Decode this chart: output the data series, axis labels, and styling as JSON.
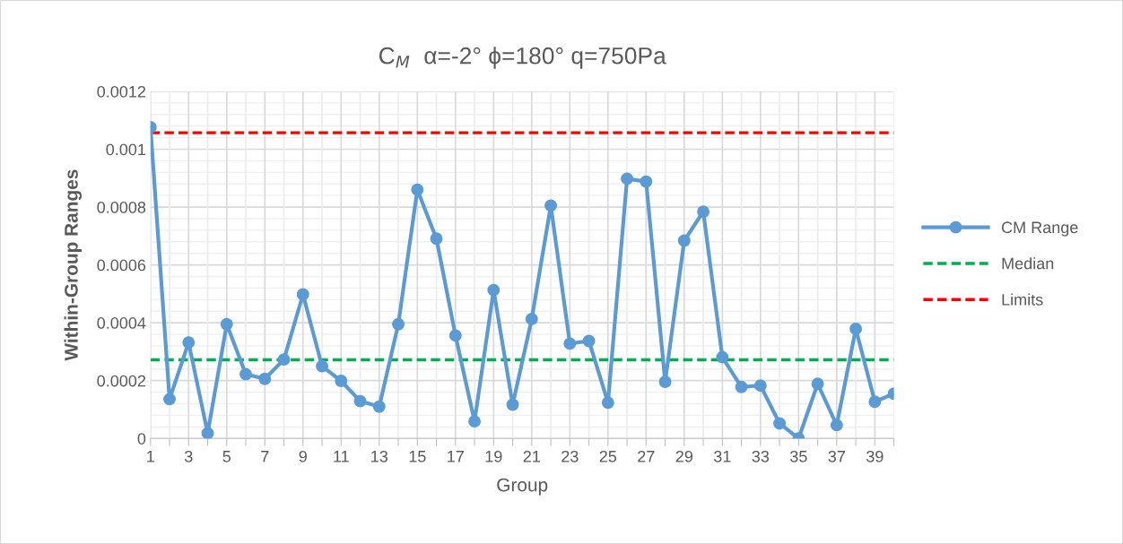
{
  "chart_data": {
    "type": "line",
    "title": "C$_{M}$  α=-2° ϕ=180° q=750Pa",
    "xlabel": "Group",
    "ylabel": "Within-Group Ranges",
    "categories": [
      "1",
      null,
      "3",
      null,
      "5",
      null,
      "7",
      null,
      "9",
      null,
      "11",
      null,
      "13",
      null,
      "15",
      null,
      "17",
      null,
      "19",
      null,
      "21",
      null,
      "23",
      null,
      "25",
      null,
      "27",
      null,
      "29",
      null,
      "31",
      null,
      "33",
      null,
      "35",
      null,
      "37",
      null,
      "39",
      null
    ],
    "series": [
      {
        "name": "CM Range",
        "color": "#5b9bd5",
        "marker": "circle",
        "line_style": "solid",
        "values": [
          0.001076,
          0.000136,
          0.000332,
          1.8e-05,
          0.000395,
          0.000222,
          0.000206,
          0.000273,
          0.000498,
          0.00025,
          0.000199,
          0.000129,
          0.00011,
          0.000395,
          0.00086,
          0.000691,
          0.000356,
          5.9e-05,
          0.000513,
          0.000117,
          0.000413,
          0.000805,
          0.000328,
          0.000337,
          0.000124,
          0.000898,
          0.000888,
          0.000196,
          0.000684,
          0.000784,
          0.000281,
          0.000178,
          0.000183,
          5.2e-05,
          0,
          0.000189,
          4.6e-05,
          0.000379,
          0.000127,
          0.000155
        ]
      },
      {
        "name": "Median",
        "color": "#00b050",
        "marker": "none",
        "line_style": "dashed",
        "values": [
          0.000272,
          0.000272,
          0.000272,
          0.000272,
          0.000272,
          0.000272,
          0.000272,
          0.000272,
          0.000272,
          0.000272,
          0.000272,
          0.000272,
          0.000272,
          0.000272,
          0.000272,
          0.000272,
          0.000272,
          0.000272,
          0.000272,
          0.000272,
          0.000272,
          0.000272,
          0.000272,
          0.000272,
          0.000272,
          0.000272,
          0.000272,
          0.000272,
          0.000272,
          0.000272,
          0.000272,
          0.000272,
          0.000272,
          0.000272,
          0.000272,
          0.000272,
          0.000272,
          0.000272,
          0.000272,
          0.000272
        ]
      },
      {
        "name": "Limits",
        "color": "#ff0000",
        "marker": "none",
        "line_style": "dashed",
        "values": [
          0.001057,
          0.001057,
          0.001057,
          0.001057,
          0.001057,
          0.001057,
          0.001057,
          0.001057,
          0.001057,
          0.001057,
          0.001057,
          0.001057,
          0.001057,
          0.001057,
          0.001057,
          0.001057,
          0.001057,
          0.001057,
          0.001057,
          0.001057,
          0.001057,
          0.001057,
          0.001057,
          0.001057,
          0.001057,
          0.001057,
          0.001057,
          0.001057,
          0.001057,
          0.001057,
          0.001057,
          0.001057,
          0.001057,
          0.001057,
          0.001057,
          0.001057,
          0.001057,
          0.001057,
          0.001057,
          0.001057
        ]
      }
    ],
    "ylim": [
      0,
      0.0012
    ],
    "yticks": [
      0,
      0.0002,
      0.0004,
      0.0006,
      0.0008,
      0.001,
      0.0012
    ],
    "grid": true,
    "legend": "right"
  }
}
